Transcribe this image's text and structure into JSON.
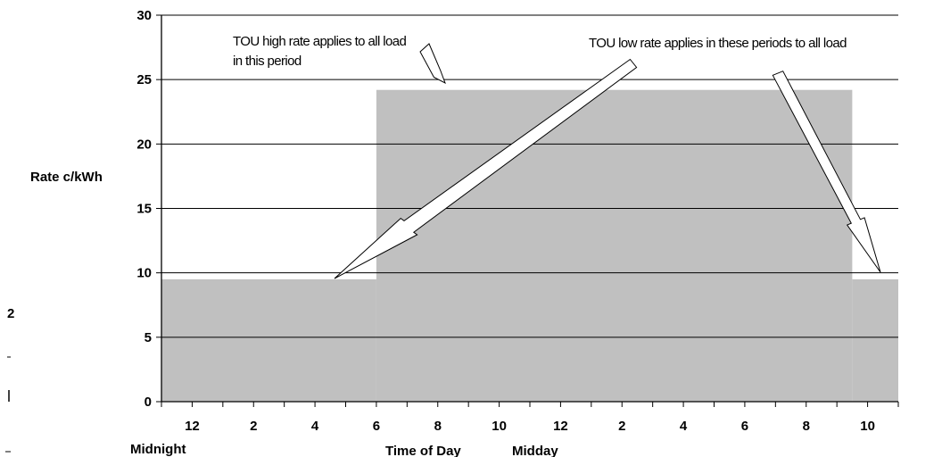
{
  "chart_data": {
    "type": "area",
    "title": "",
    "ylabel": "Rate c/kWh",
    "xlabel": "Time of Day",
    "ylim": [
      0,
      30
    ],
    "yticks": [
      0,
      5,
      10,
      15,
      20,
      25,
      30
    ],
    "grid": true,
    "hours": [
      0,
      24
    ],
    "x_tick_labels": [
      "12",
      "2",
      "4",
      "6",
      "8",
      "10",
      "12",
      "2",
      "4",
      "6",
      "8",
      "10"
    ],
    "x_sub_labels": {
      "midnight": "Midnight",
      "midday": "Midday"
    },
    "series": [
      {
        "values": [
          {
            "from_hour": 0,
            "to_hour": 7,
            "rate": 9.5
          },
          {
            "from_hour": 7,
            "to_hour": 22.5,
            "rate": 24.2
          },
          {
            "from_hour": 22.5,
            "to_hour": 24,
            "rate": 9.5
          }
        ],
        "color": "#c0c0c0"
      }
    ],
    "annotations": {
      "high": [
        "TOU high rate applies to all load",
        "in this period"
      ],
      "low": "TOU low rate applies in these periods to all load"
    }
  }
}
